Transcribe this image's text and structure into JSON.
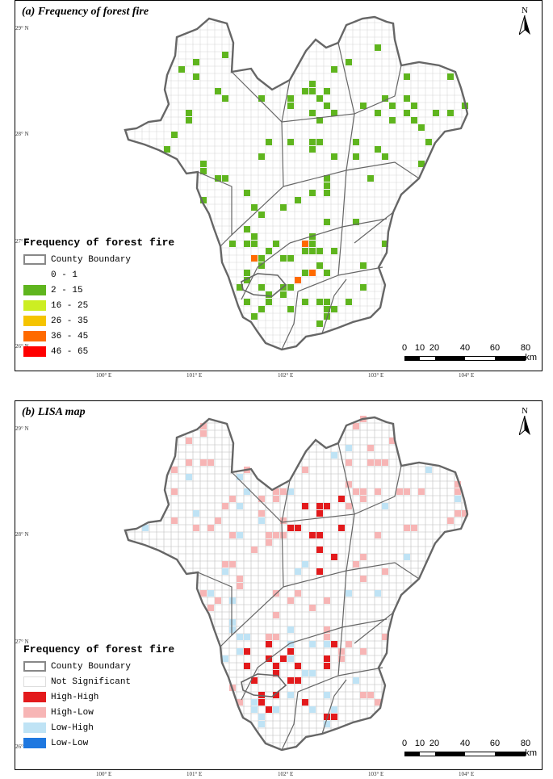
{
  "panel_a": {
    "title": "(a) Frequency of forest fire",
    "north": "N",
    "legend": {
      "title": "Frequency of forest fire",
      "items": [
        {
          "label": "County Boundary",
          "color": "#ffffff",
          "border": "#888888"
        },
        {
          "label": "0 - 1",
          "color": "#ffffff",
          "border": "#ffffff"
        },
        {
          "label": "2 - 15",
          "color": "#5fb51e",
          "border": "#5fb51e"
        },
        {
          "label": "16 - 25",
          "color": "#ccee22",
          "border": "#ccee22"
        },
        {
          "label": "26 - 35",
          "color": "#f5c400",
          "border": "#f5c400"
        },
        {
          "label": "36 - 45",
          "color": "#ff6a00",
          "border": "#ff6a00"
        },
        {
          "label": "46 - 65",
          "color": "#ff0000",
          "border": "#ff0000"
        }
      ]
    },
    "lat_labels": [
      "29° N",
      "28° N",
      "27° N",
      "26° N"
    ],
    "lon_labels": [
      "100° E",
      "101° E",
      "102° E",
      "103° E",
      "104° E"
    ]
  },
  "panel_b": {
    "title": "(b) LISA map",
    "north": "N",
    "legend": {
      "title": "Frequency of forest fire",
      "items": [
        {
          "label": "County Boundary",
          "color": "#ffffff",
          "border": "#888888"
        },
        {
          "label": "Not Significant",
          "color": "#ffffff",
          "border": "#dddddd"
        },
        {
          "label": "High-High",
          "color": "#e31a1c",
          "border": "#e31a1c"
        },
        {
          "label": "High-Low",
          "color": "#f7b5b5",
          "border": "#f7b5b5"
        },
        {
          "label": "Low-High",
          "color": "#bfe3f5",
          "border": "#bfe3f5"
        },
        {
          "label": "Low-Low",
          "color": "#1f78e0",
          "border": "#1f78e0"
        }
      ]
    },
    "lat_labels": [
      "29° N",
      "28° N",
      "27° N",
      "26° N"
    ],
    "lon_labels": [
      "100° E",
      "101° E",
      "102° E",
      "103° E",
      "104° E"
    ]
  },
  "scalebar": {
    "ticks": [
      "0",
      "10",
      "20",
      "40",
      "60",
      "80"
    ],
    "unit": "km"
  },
  "colors": {
    "boundary": "#666666",
    "grid": "#d8d8d8",
    "fire_low": "#5fb51e",
    "fire_mid": "#ccee22",
    "fire_36": "#ff6a00",
    "fire_high": "#ff0000",
    "hh": "#e31a1c",
    "hl": "#f7b5b5",
    "lh": "#bfe3f5"
  }
}
